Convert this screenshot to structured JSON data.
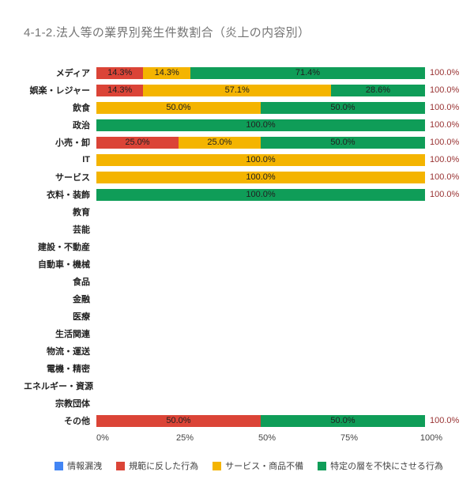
{
  "title": "4-1-2.法人等の業界別発生件数割合（炎上の内容別）",
  "chart_data": {
    "type": "bar",
    "orientation": "horizontal",
    "stacked": true,
    "xlim": [
      0,
      100
    ],
    "x_ticks": [
      "0%",
      "25%",
      "50%",
      "75%",
      "100%"
    ],
    "legend_position": "bottom",
    "grid": false,
    "total_label_color": "#993333",
    "categories": [
      "メディア",
      "娯楽・レジャー",
      "飲食",
      "政治",
      "小売・卸",
      "IT",
      "サービス",
      "衣料・装飾",
      "教育",
      "芸能",
      "建設・不動産",
      "自動車・機械",
      "食品",
      "金融",
      "医療",
      "生活関連",
      "物流・運送",
      "電機・精密",
      "エネルギー・資源",
      "宗教団体",
      "その他"
    ],
    "series": [
      {
        "name": "情報漏洩",
        "color": "#4285F4",
        "values": [
          0,
          0,
          0,
          0,
          0,
          0,
          0,
          0,
          0,
          0,
          0,
          0,
          0,
          0,
          0,
          0,
          0,
          0,
          0,
          0,
          0
        ]
      },
      {
        "name": "規範に反した行為",
        "color": "#DB4437",
        "values": [
          14.3,
          14.3,
          0,
          0,
          25,
          0,
          0,
          0,
          0,
          0,
          0,
          0,
          0,
          0,
          0,
          0,
          0,
          0,
          0,
          0,
          50
        ]
      },
      {
        "name": "サービス・商品不備",
        "color": "#F4B400",
        "values": [
          14.3,
          57.1,
          50,
          0,
          25,
          100,
          100,
          0,
          0,
          0,
          0,
          0,
          0,
          0,
          0,
          0,
          0,
          0,
          0,
          0,
          0
        ]
      },
      {
        "name": "特定の層を不快にさせる行為",
        "color": "#0F9D58",
        "values": [
          71.4,
          28.6,
          50,
          100,
          50,
          0,
          0,
          100,
          0,
          0,
          0,
          0,
          0,
          0,
          0,
          0,
          0,
          0,
          0,
          0,
          50
        ]
      }
    ],
    "row_totals": [
      "100.0%",
      "100.0%",
      "100.0%",
      "100.0%",
      "100.0%",
      "100.0%",
      "100.0%",
      "100.0%",
      "",
      "",
      "",
      "",
      "",
      "",
      "",
      "",
      "",
      "",
      "",
      "",
      "100.0%"
    ]
  }
}
